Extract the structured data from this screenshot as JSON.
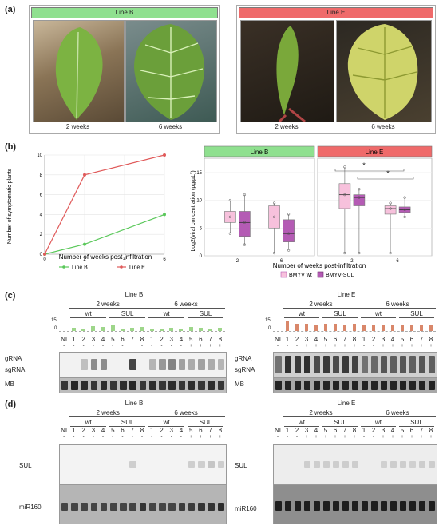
{
  "panel_a": {
    "label": "(a)",
    "line_b": {
      "title": "Line B",
      "captions": [
        "2 weeks",
        "6 weeks"
      ]
    },
    "line_e": {
      "title": "Line E",
      "captions": [
        "2 weeks",
        "6 weeks"
      ]
    }
  },
  "panel_b": {
    "label": "(b)",
    "line_chart": {
      "xlabel": "Number of weeks post-infiltration",
      "ylabel": "Number of symptomatic plants",
      "legend": [
        "Line B",
        "Line E"
      ]
    },
    "box_chart": {
      "ylabel": "Log2(viral concentration (pg/µL))",
      "xlabel": "Number of weeks post-infiltration",
      "facets": [
        "Line B",
        "Line E"
      ],
      "legend": [
        "BMYV wt",
        "BMYV-SUL"
      ],
      "stars": [
        "*",
        "*"
      ]
    }
  },
  "chart_data": [
    {
      "type": "line",
      "x": [
        0,
        2,
        6
      ],
      "series": [
        {
          "name": "Line B",
          "values": [
            0,
            1,
            4
          ],
          "color": "#5ac85a"
        },
        {
          "name": "Line E",
          "values": [
            0,
            8,
            10
          ],
          "color": "#e05a5a"
        }
      ],
      "xlabel": "Number of weeks post-infiltration",
      "ylabel": "Number of symptomatic plants",
      "xticks": [
        0,
        2,
        4,
        6
      ],
      "yticks": [
        0,
        2,
        4,
        6,
        8,
        10
      ],
      "xlim": [
        0,
        6
      ],
      "ylim": [
        0,
        10
      ],
      "grid": true,
      "legend_position": "bottom"
    },
    {
      "type": "box",
      "ylabel": "Log2(viral concentration (pg/µL))",
      "xlabel": "Number of weeks post-infiltration",
      "yticks": [
        0,
        5,
        10,
        15
      ],
      "ylim": [
        0,
        17
      ],
      "facets": [
        {
          "name": "Line B",
          "groups": [
            {
              "week": 2,
              "series": "BMYV wt",
              "q1": 6,
              "median": 7,
              "q3": 8,
              "min": 4,
              "max": 10
            },
            {
              "week": 2,
              "series": "BMYV-SUL",
              "q1": 3.5,
              "median": 6,
              "q3": 8,
              "min": 2,
              "max": 11
            },
            {
              "week": 6,
              "series": "BMYV wt",
              "q1": 5,
              "median": 7,
              "q3": 9,
              "min": 0.5,
              "max": 9.5
            },
            {
              "week": 6,
              "series": "BMYV-SUL",
              "q1": 2.5,
              "median": 4,
              "q3": 6.5,
              "min": 1,
              "max": 7.5
            }
          ]
        },
        {
          "name": "Line E",
          "groups": [
            {
              "week": 2,
              "series": "BMYV wt",
              "q1": 8.5,
              "median": 11,
              "q3": 13,
              "min": 0.5,
              "max": 16
            },
            {
              "week": 2,
              "series": "BMYV-SUL",
              "q1": 9,
              "median": 10.5,
              "q3": 11,
              "min": 0.5,
              "max": 12
            },
            {
              "week": 6,
              "series": "BMYV wt",
              "q1": 7.5,
              "median": 8.5,
              "q3": 9,
              "min": 0.5,
              "max": 9.5
            },
            {
              "week": 6,
              "series": "BMYV-SUL",
              "q1": 7.8,
              "median": 8.3,
              "q3": 8.8,
              "min": 7,
              "max": 10.5
            }
          ]
        }
      ],
      "legend": [
        {
          "name": "BMYV wt",
          "color": "#f7c1dc"
        },
        {
          "name": "BMYV-SUL",
          "color": "#b45bb4"
        }
      ],
      "legend_position": "bottom"
    }
  ],
  "panel_c": {
    "label": "(c)",
    "line_b": {
      "title": "Line B",
      "groups": [
        "2 weeks",
        "6 weeks"
      ],
      "sub": [
        "wt",
        "SUL",
        "wt",
        "SUL"
      ],
      "lanes": [
        "NI",
        "1",
        "2",
        "3",
        "4",
        "5",
        "6",
        "7",
        "8",
        "1",
        "2",
        "3",
        "4",
        "5",
        "6",
        "7",
        "8"
      ],
      "signs": [
        "-",
        "-",
        "-",
        "-",
        "-",
        "-",
        "-",
        "+",
        "-",
        "-",
        "-",
        "-",
        "-",
        "+",
        "+",
        "+",
        "+"
      ],
      "ymax": "15",
      "ymin": "0",
      "rows": [
        "gRNA",
        "sgRNA",
        "MB"
      ]
    },
    "line_e": {
      "title": "Line E",
      "groups": [
        "2 weeks",
        "6 weeks"
      ],
      "sub": [
        "wt",
        "SUL",
        "wt",
        "SUL"
      ],
      "lanes": [
        "NI",
        "1",
        "2",
        "3",
        "4",
        "5",
        "6",
        "7",
        "8",
        "1",
        "2",
        "3",
        "4",
        "5",
        "6",
        "7",
        "8"
      ],
      "signs": [
        "-",
        "-",
        "-",
        "+",
        "+",
        "+",
        "+",
        "+",
        "+",
        "-",
        "-",
        "+",
        "+",
        "+",
        "+",
        "+",
        "+"
      ],
      "ymax": "15",
      "ymin": "0",
      "rows": [
        "gRNA",
        "sgRNA",
        "MB"
      ]
    }
  },
  "panel_d": {
    "label": "(d)",
    "line_b": {
      "title": "Line B",
      "groups": [
        "2 weeks",
        "6 weeks"
      ],
      "sub": [
        "wt",
        "SUL",
        "wt",
        "SUL"
      ],
      "lanes": [
        "NI",
        "1",
        "2",
        "3",
        "4",
        "5",
        "6",
        "7",
        "8",
        "1",
        "2",
        "3",
        "4",
        "5",
        "6",
        "7",
        "8"
      ],
      "signs": [
        "-",
        "-",
        "-",
        "-",
        "-",
        "-",
        "-",
        "-",
        "-",
        "-",
        "-",
        "-",
        "-",
        "+",
        "+",
        "+",
        "+"
      ],
      "rows": [
        "SUL",
        "miR160"
      ]
    },
    "line_e": {
      "title": "Line E",
      "groups": [
        "2 weeks",
        "6 weeks"
      ],
      "sub": [
        "wt",
        "SUL",
        "wt",
        "SUL"
      ],
      "lanes": [
        "NI",
        "1",
        "2",
        "3",
        "4",
        "5",
        "6",
        "7",
        "8",
        "1",
        "2",
        "3",
        "4",
        "5",
        "6",
        "7",
        "8"
      ],
      "signs": [
        "-",
        "-",
        "-",
        "+",
        "+",
        "+",
        "+",
        "+",
        "+",
        "-",
        "-",
        "+",
        "+",
        "+",
        "+",
        "+",
        "+"
      ],
      "rows": [
        "SUL",
        "miR160"
      ]
    }
  }
}
